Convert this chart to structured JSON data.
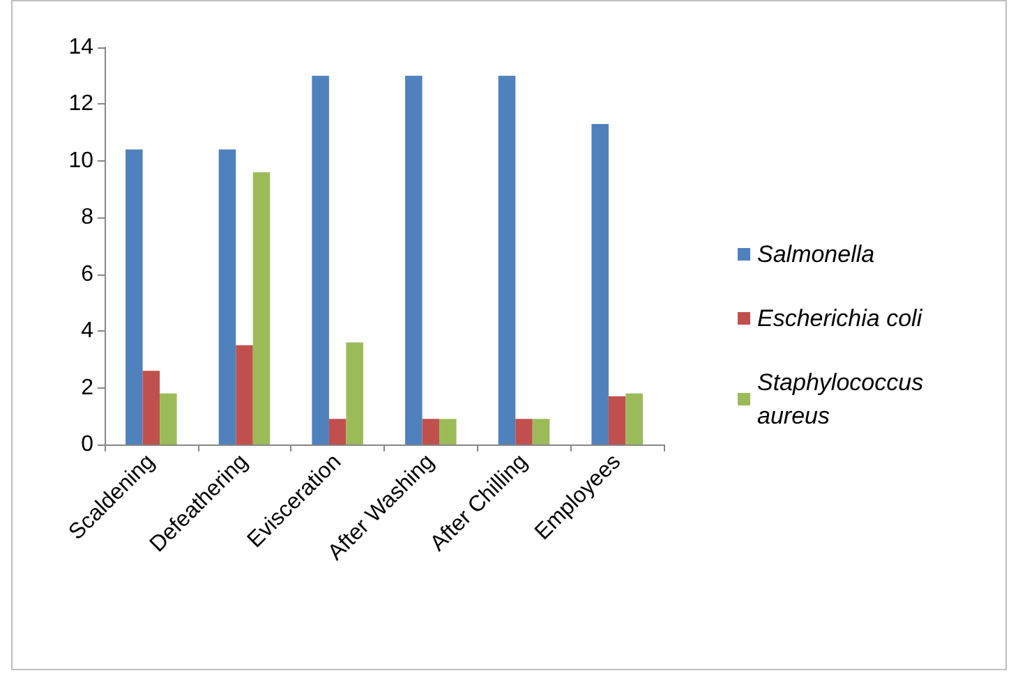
{
  "chart_data": {
    "type": "bar",
    "categories": [
      "Scaldening",
      "Defeathering",
      "Evisceration",
      "After Washing",
      "After Chilling",
      "Employees"
    ],
    "series": [
      {
        "name": "Salmonella",
        "color": "#4f81bd",
        "values": [
          10.4,
          10.4,
          13,
          13,
          13,
          11.3
        ]
      },
      {
        "name": "Escherichia coli",
        "color": "#c0504d",
        "values": [
          2.6,
          3.5,
          0.9,
          0.9,
          0.9,
          1.7
        ]
      },
      {
        "name": "Staphylococcus aureus",
        "color": "#9bbb59",
        "values": [
          1.8,
          9.6,
          3.6,
          0.9,
          0.9,
          1.8
        ]
      }
    ],
    "ylim": [
      0,
      14
    ],
    "yticks": [
      0,
      2,
      4,
      6,
      8,
      10,
      12,
      14
    ],
    "grid": false,
    "legend": "right"
  }
}
